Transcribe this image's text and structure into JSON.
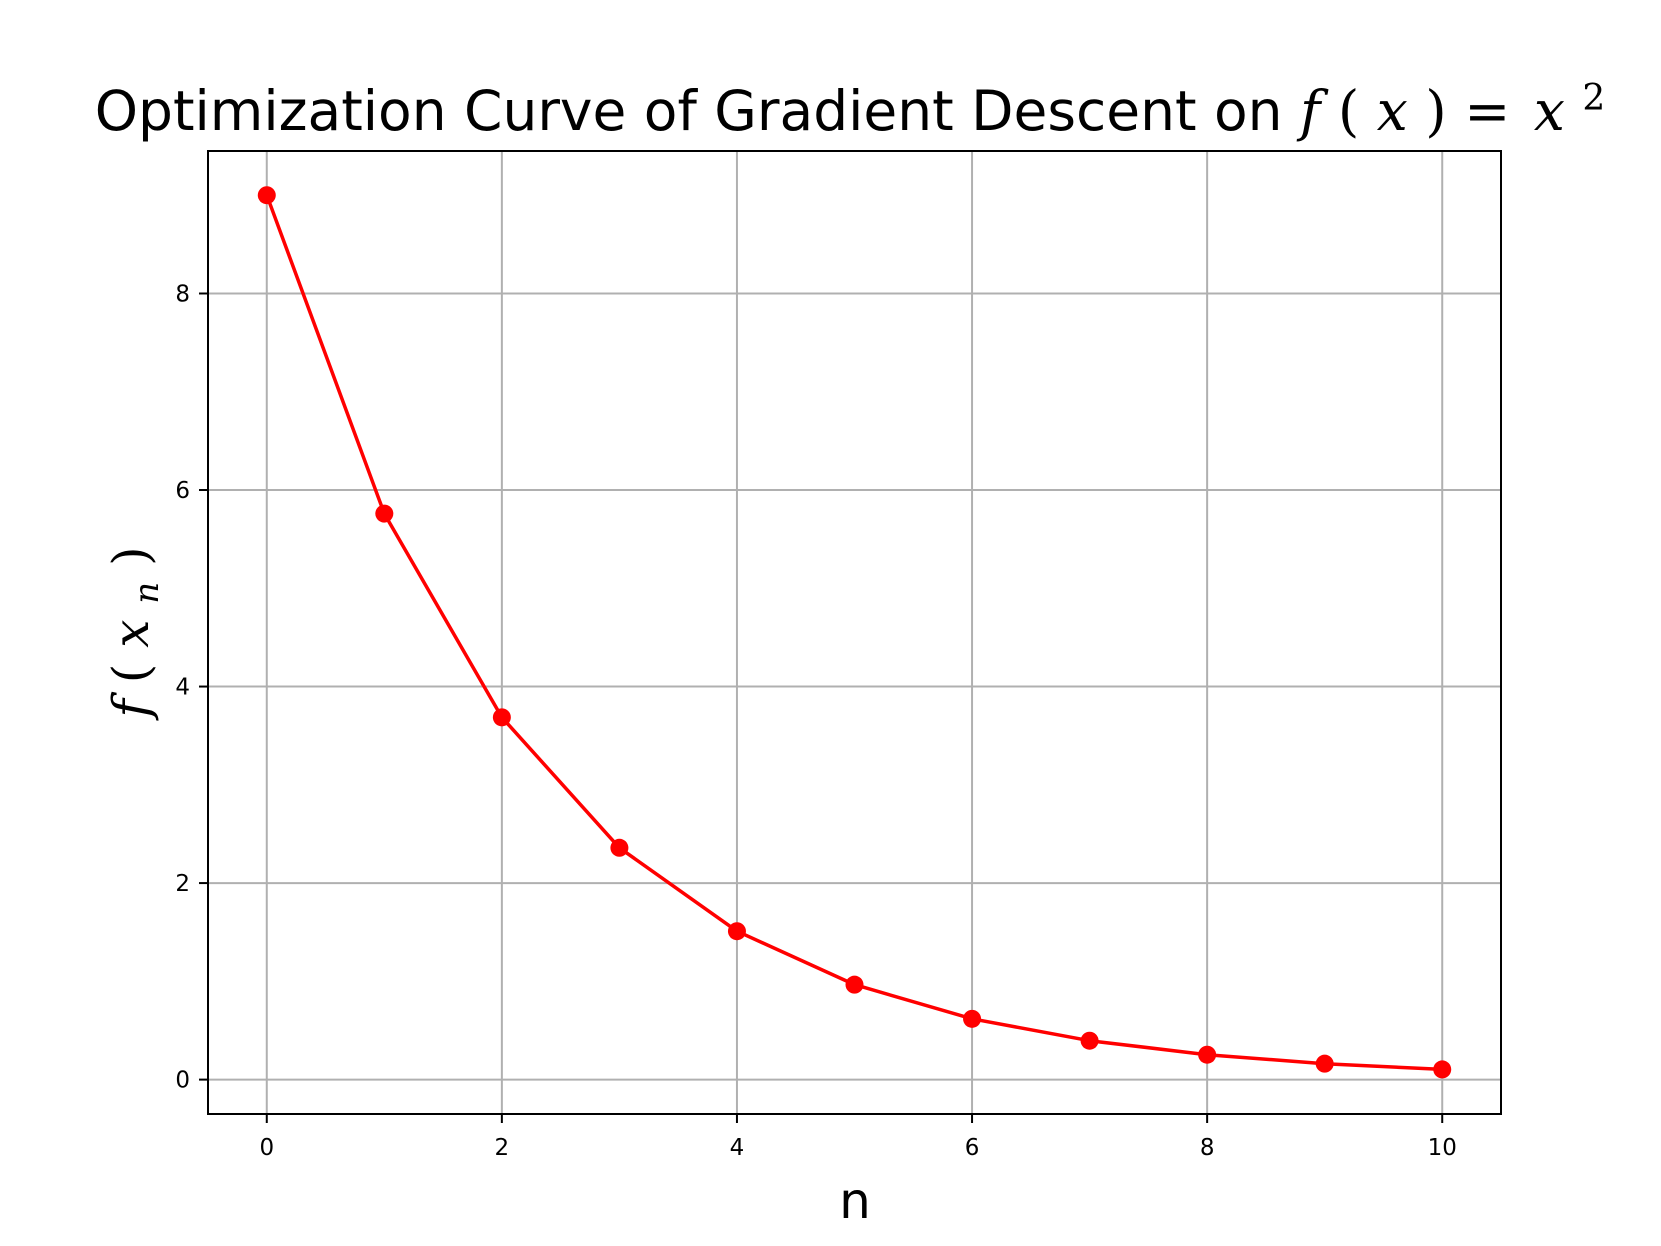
{
  "chart_data": {
    "type": "line",
    "title_text": "Optimization Curve of Gradient Descent on ",
    "title_math": {
      "fn": "f",
      "arg": "x",
      "eq": "=",
      "base": "x",
      "exp": "2"
    },
    "xlabel": "n",
    "ylabel": {
      "fn": "f",
      "base": "x",
      "sub": "n"
    },
    "xlim": [
      -0.5,
      10.5
    ],
    "ylim": [
      -0.35,
      9.45
    ],
    "xticks": [
      0,
      2,
      4,
      6,
      8,
      10
    ],
    "yticks": [
      0,
      2,
      4,
      6,
      8
    ],
    "grid": true,
    "series": [
      {
        "x": [
          0,
          1,
          2,
          3,
          4,
          5,
          6,
          7,
          8,
          9,
          10
        ],
        "values": [
          9.0,
          5.76,
          3.6864,
          2.3593,
          1.5099,
          0.9664,
          0.6185,
          0.3958,
          0.2533,
          0.1621,
          0.1038
        ],
        "color": "#ff0000",
        "marker": "circle"
      }
    ]
  }
}
